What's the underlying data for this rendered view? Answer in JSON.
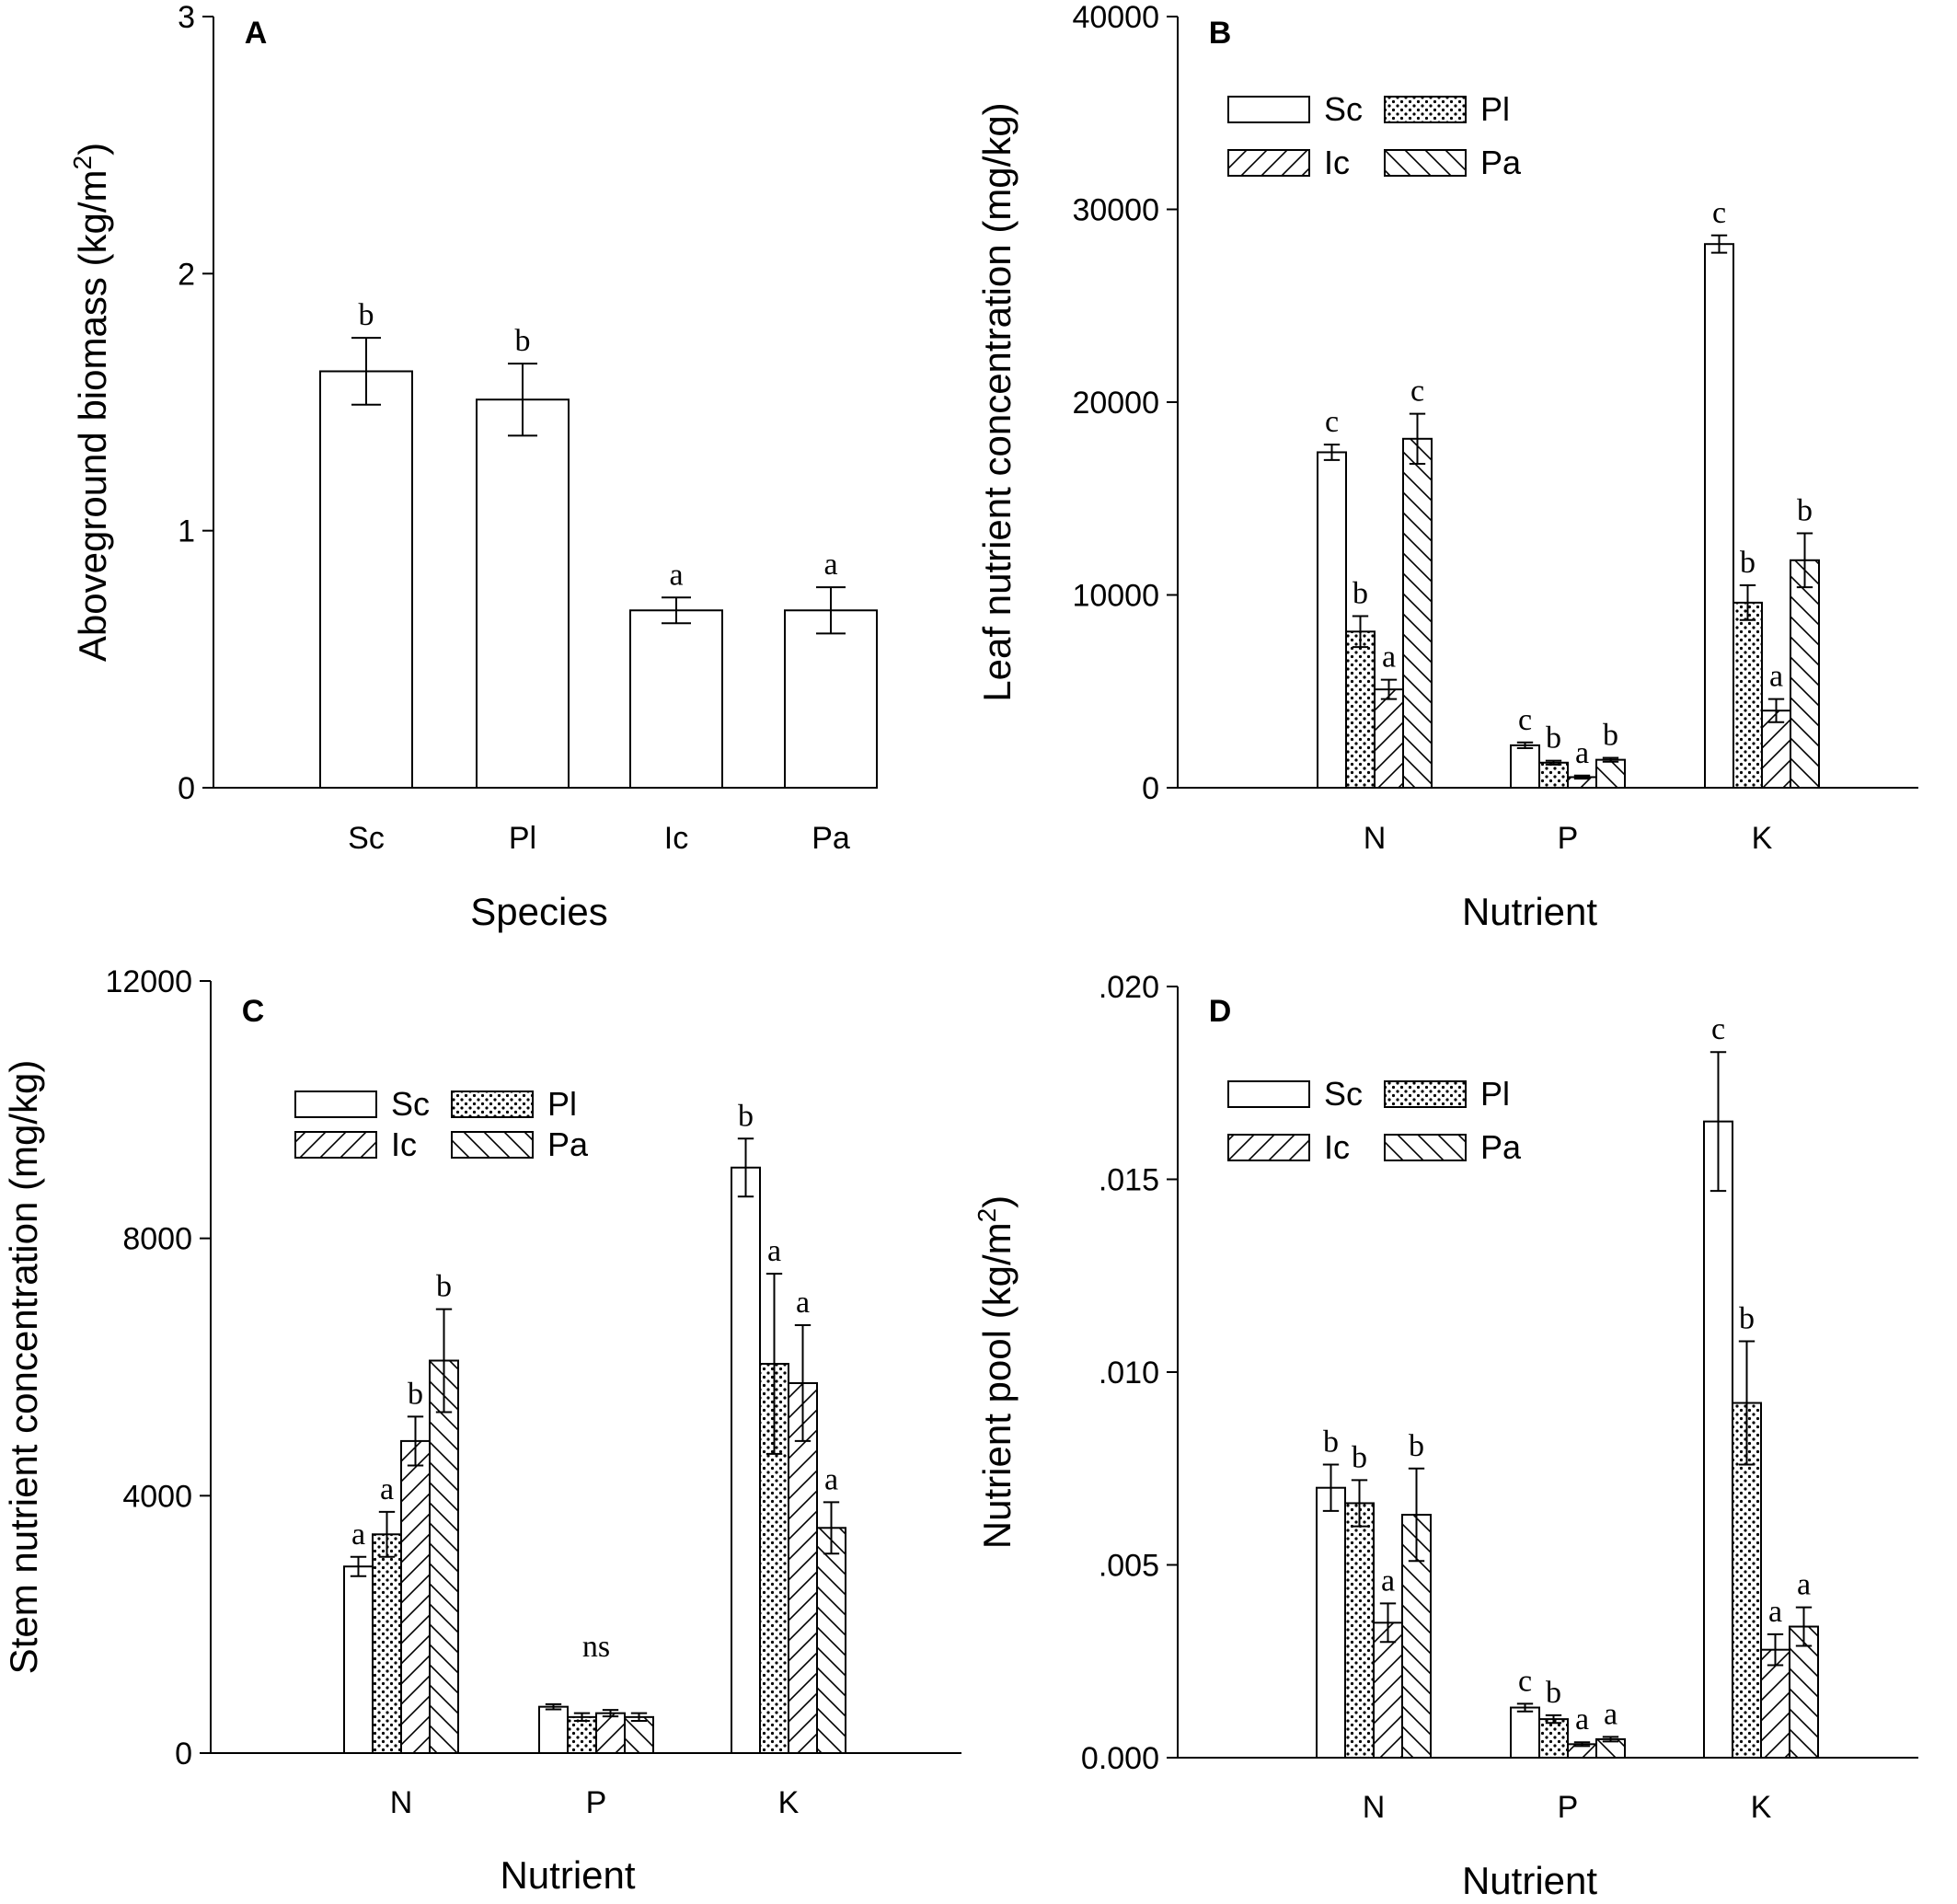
{
  "chart_data": [
    {
      "panel": "A",
      "type": "bar",
      "title": "",
      "xlabel": "Species",
      "ylabel": "Aboveground biomass (kg/m",
      "ylabel_sup": "2",
      "ylabel_end": ")",
      "ylim": [
        0,
        3
      ],
      "yticks": [
        "0",
        "1",
        "2",
        "3"
      ],
      "categories": [
        "Sc",
        "Pl",
        "Ic",
        "Pa"
      ],
      "legend": null,
      "series": [
        {
          "name": "Biomass",
          "pattern": "none",
          "values": [
            1.62,
            1.51,
            0.69,
            0.69
          ],
          "errors": [
            0.13,
            0.14,
            0.05,
            0.09
          ],
          "labels": [
            "b",
            "b",
            "a",
            "a"
          ]
        }
      ],
      "annotations": []
    },
    {
      "panel": "B",
      "type": "bar",
      "title": "",
      "xlabel": "Nutrient",
      "ylabel": "Leaf nutrient concentration (mg/kg)",
      "ylim": [
        0,
        40000
      ],
      "yticks": [
        "0",
        "10000",
        "20000",
        "30000",
        "40000"
      ],
      "categories": [
        "N",
        "P",
        "K"
      ],
      "legend": [
        "Sc",
        "Pl",
        "Ic",
        "Pa"
      ],
      "legend_placement": "top-left",
      "series": [
        {
          "name": "Sc",
          "pattern": "none",
          "values": [
            17400,
            2200,
            28200
          ],
          "errors": [
            400,
            150,
            450
          ],
          "labels": [
            "c",
            "c",
            "c"
          ]
        },
        {
          "name": "Pl",
          "pattern": "dots",
          "values": [
            8100,
            1300,
            9600
          ],
          "errors": [
            800,
            100,
            900
          ],
          "labels": [
            "b",
            "b",
            "b"
          ]
        },
        {
          "name": "Ic",
          "pattern": "forward",
          "values": [
            5100,
            550,
            4000
          ],
          "errors": [
            500,
            80,
            600
          ],
          "labels": [
            "a",
            "a",
            "a"
          ]
        },
        {
          "name": "Pa",
          "pattern": "back",
          "values": [
            18100,
            1450,
            11800
          ],
          "errors": [
            1300,
            100,
            1400
          ],
          "labels": [
            "c",
            "b",
            "b"
          ]
        }
      ],
      "annotations": []
    },
    {
      "panel": "C",
      "type": "bar",
      "title": "",
      "xlabel": "Nutrient",
      "ylabel": "Stem nutrient concentration (mg/kg)",
      "ylim": [
        0,
        12000
      ],
      "yticks": [
        "0",
        "4000",
        "8000",
        "12000"
      ],
      "categories": [
        "N",
        "P",
        "K"
      ],
      "legend": [
        "Sc",
        "Pl",
        "Ic",
        "Pa"
      ],
      "legend_placement": "top-left",
      "series": [
        {
          "name": "Sc",
          "pattern": "none",
          "values": [
            2900,
            720,
            9100
          ],
          "errors": [
            150,
            40,
            450
          ],
          "labels": [
            "a",
            "",
            "b"
          ]
        },
        {
          "name": "Pl",
          "pattern": "dots",
          "values": [
            3400,
            560,
            6050
          ],
          "errors": [
            350,
            60,
            1400
          ],
          "labels": [
            "a",
            "",
            "a"
          ]
        },
        {
          "name": "Ic",
          "pattern": "forward",
          "values": [
            4850,
            620,
            5750
          ],
          "errors": [
            380,
            50,
            900
          ],
          "labels": [
            "b",
            "",
            "a"
          ]
        },
        {
          "name": "Pa",
          "pattern": "back",
          "values": [
            6100,
            560,
            3500
          ],
          "errors": [
            800,
            60,
            400
          ],
          "labels": [
            "b",
            "",
            "a"
          ]
        }
      ],
      "annotations": [
        {
          "text": "ns",
          "category": "P"
        }
      ]
    },
    {
      "panel": "D",
      "type": "bar",
      "title": "",
      "xlabel": "Nutrient",
      "ylabel": "Nutrient pool (kg/m",
      "ylabel_sup": "2",
      "ylabel_end": ")",
      "ylim": [
        0,
        0.02
      ],
      "yticks": [
        "0.000",
        ".005",
        ".010",
        ".015",
        ".020"
      ],
      "categories": [
        "N",
        "P",
        "K"
      ],
      "legend": [
        "Sc",
        "Pl",
        "Ic",
        "Pa"
      ],
      "legend_placement": "top-left",
      "series": [
        {
          "name": "Sc",
          "pattern": "none",
          "values": [
            0.007,
            0.0013,
            0.0165
          ],
          "errors": [
            0.0006,
            0.0001,
            0.0018
          ],
          "labels": [
            "b",
            "c",
            "c"
          ]
        },
        {
          "name": "Pl",
          "pattern": "dots",
          "values": [
            0.0066,
            0.001,
            0.0092
          ],
          "errors": [
            0.0006,
            0.0001,
            0.0016
          ],
          "labels": [
            "b",
            "b",
            "b"
          ]
        },
        {
          "name": "Ic",
          "pattern": "forward",
          "values": [
            0.0035,
            0.00035,
            0.0028
          ],
          "errors": [
            0.0005,
            5e-05,
            0.0004
          ],
          "labels": [
            "a",
            "a",
            "a"
          ]
        },
        {
          "name": "Pa",
          "pattern": "back",
          "values": [
            0.0063,
            0.00048,
            0.0034
          ],
          "errors": [
            0.0012,
            6e-05,
            0.0005
          ],
          "labels": [
            "b",
            "a",
            "a"
          ]
        }
      ],
      "annotations": []
    }
  ]
}
